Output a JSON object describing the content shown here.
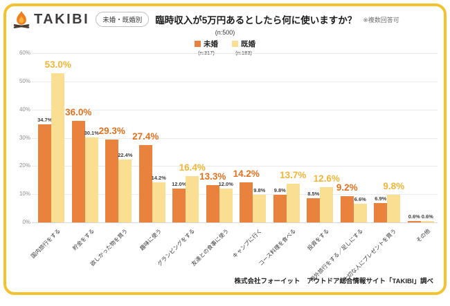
{
  "header": {
    "logo_text": "TAKIBI",
    "badge_label": "未婚・既婚別",
    "title": "臨時収入が5万円あるとしたら何に使いますか？",
    "note": "※複数回答可",
    "sample_size": "(n:500)"
  },
  "legend": {
    "items": [
      {
        "label": "未婚",
        "sub": "(n:317)",
        "color": "#E8823C"
      },
      {
        "label": "既婚",
        "sub": "(n:183)",
        "color": "#FADE92"
      }
    ]
  },
  "chart_data": {
    "type": "bar",
    "title": "臨時収入が5万円あるとしたら何に使いますか？",
    "categories": [
      "国内旅行をする",
      "貯金をする",
      "欲しかった物を買う",
      "趣味に使う",
      "グランピングをする",
      "友達との食事に使う",
      "キャンプに行く",
      "コース料理を食べる",
      "投資をする",
      "海外旅行をする／足しにする",
      "大切な人にプレゼントを買う",
      "その他"
    ],
    "series": [
      {
        "name": "未婚",
        "n": 317,
        "color": "#E8823C",
        "values": [
          34.7,
          36.0,
          29.3,
          27.4,
          12.0,
          13.3,
          14.2,
          9.8,
          8.5,
          9.2,
          6.9,
          0.6
        ]
      },
      {
        "name": "既婚",
        "n": 183,
        "color": "#FADE92",
        "values": [
          53.0,
          30.1,
          22.4,
          14.2,
          16.4,
          12.0,
          9.8,
          13.7,
          12.6,
          6.6,
          9.8,
          0.6
        ]
      }
    ],
    "highlight_series": [
      1,
      0,
      0,
      0,
      1,
      0,
      0,
      1,
      1,
      0,
      1,
      -1
    ],
    "big_label_colors": {
      "未婚": "#E1711E",
      "既婚": "#F2B535"
    },
    "small_label_color": "#3C3C3C",
    "ylim": [
      0,
      60
    ],
    "ytick_step": 10,
    "ytick_suffix": "%",
    "grid": true,
    "legend_position": "top"
  },
  "footer": {
    "credit": "株式会社フォーイット　アウトドア総合情報サイト「TAKIBI」調べ"
  },
  "colors": {
    "card_border": "#F2C22F",
    "grid": "#EAEAEA",
    "axis_text": "#8F8F8F"
  }
}
